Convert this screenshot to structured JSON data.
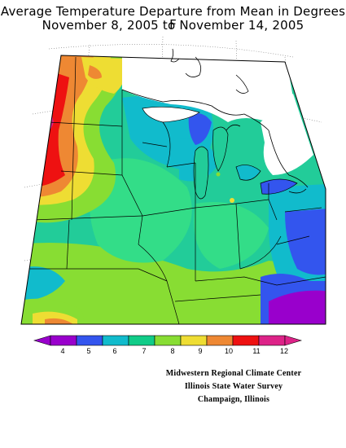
{
  "header": {
    "title_line1": "Average Temperature Departure from Mean in Degrees F",
    "title_line2": "November 8, 2005 to November 14, 2005"
  },
  "legend": {
    "colors": [
      "#9900cc",
      "#3355ee",
      "#11bbcc",
      "#11cc88",
      "#88dd33",
      "#eedd33",
      "#ee8833",
      "#ee1111",
      "#dd2288"
    ],
    "labels": [
      "4",
      "5",
      "6",
      "7",
      "8",
      "9",
      "10",
      "11",
      "12"
    ]
  },
  "credits": {
    "line1": "Midwestern Regional Climate Center",
    "line2": "Illinois State Water Survey",
    "line3": "Champaign, Illinois"
  }
}
